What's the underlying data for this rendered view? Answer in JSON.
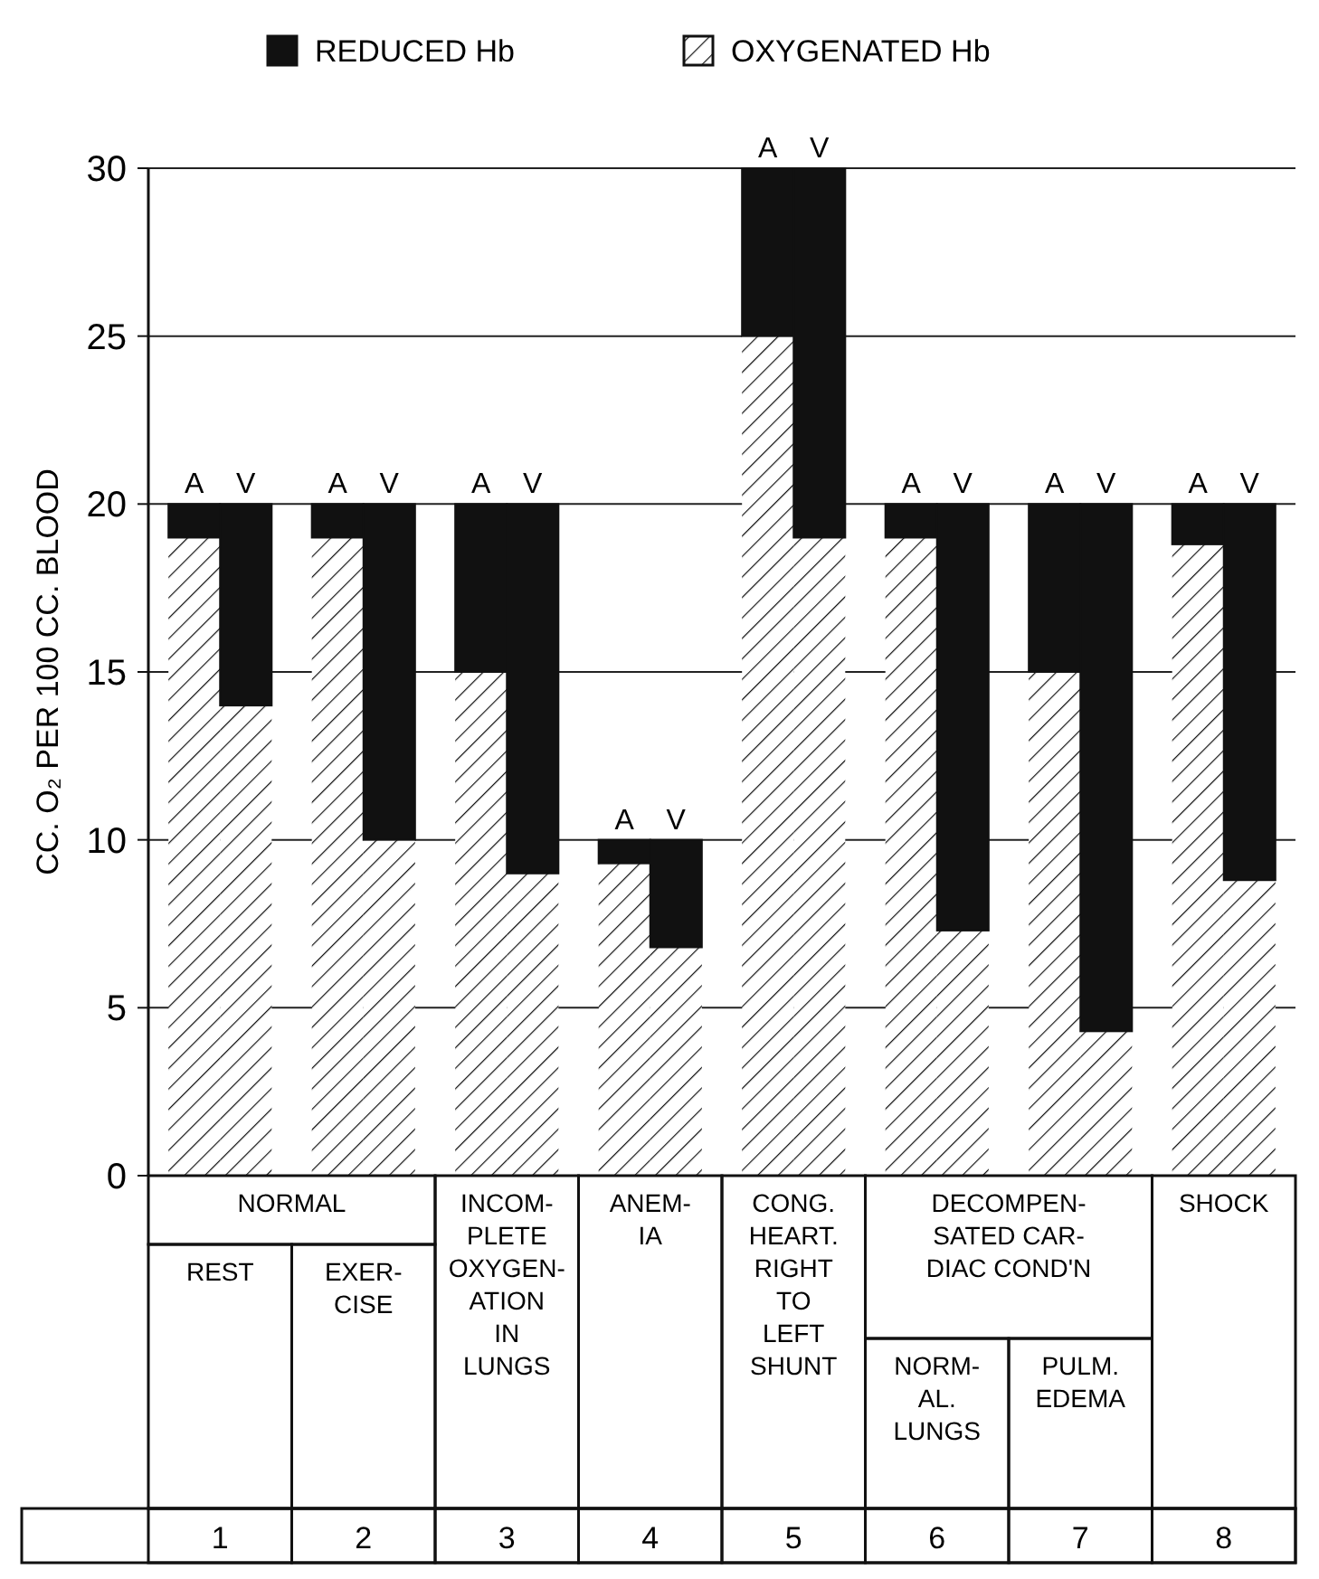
{
  "chart_data": {
    "type": "bar",
    "stacked": true,
    "ylabel": "CC. O₂ PER 100 CC. BLOOD",
    "categories": [
      "A",
      "V",
      "A",
      "V",
      "A",
      "V",
      "A",
      "V",
      "A",
      "V",
      "A",
      "V",
      "A",
      "V",
      "A",
      "V"
    ],
    "series": [
      {
        "name": "OXYGENATED Hb",
        "color": "#ffffff",
        "values": [
          19,
          14,
          19,
          10,
          15,
          9,
          9.3,
          6.8,
          25,
          19,
          19,
          7.3,
          15,
          4.3,
          18.8,
          8.8
        ]
      },
      {
        "name": "REDUCED Hb",
        "color": "#111111",
        "values": [
          1,
          6,
          1,
          10,
          5,
          11,
          0.7,
          3.2,
          5,
          11,
          1,
          12.7,
          5,
          15.7,
          1.2,
          11.2
        ]
      }
    ],
    "ylim": [
      0,
      30
    ],
    "yticks": [
      0,
      5,
      10,
      15,
      20,
      25,
      30
    ],
    "grid": "y",
    "legend": "top",
    "annotations": [
      "NORMAL",
      "REST",
      "EXER-\nCISE",
      "INCOM-\nPLETE\nOXYGEN-\nATION\nIN\nLUNGS",
      "ANEM-\nIA",
      "CONG.\nHEART.\nRIGHT\nTO\nLEFT\nSHUNT",
      "DECOMPEN-\nSATED CAR-\nDIAC COND'N",
      "NORM-\nAL.\nLUNGS",
      "PULM.\nEDEMA",
      "SHOCK",
      "1",
      "2",
      "3",
      "4",
      "5",
      "6",
      "7",
      "8"
    ]
  }
}
